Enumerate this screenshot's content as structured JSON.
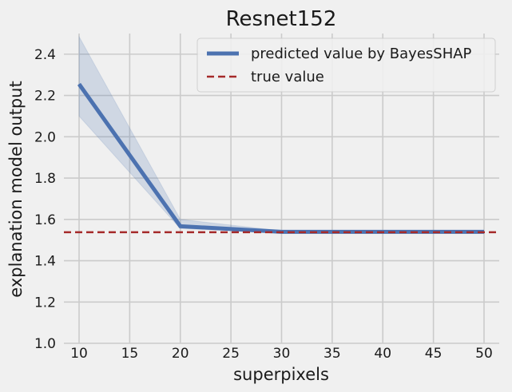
{
  "chart_data": {
    "type": "line",
    "title": "Resnet152",
    "xlabel": "superpixels",
    "ylabel": "explanation model output",
    "xlim": [
      8.5,
      51.5
    ],
    "ylim": [
      1.0,
      2.5
    ],
    "xticks": [
      10,
      15,
      20,
      25,
      30,
      35,
      40,
      45,
      50
    ],
    "yticks": [
      1.0,
      1.2,
      1.4,
      1.6,
      1.8,
      2.0,
      2.2,
      2.4
    ],
    "ytick_labels": [
      "1.0",
      "1.2",
      "1.4",
      "1.6",
      "1.8",
      "2.0",
      "2.2",
      "2.4"
    ],
    "grid": true,
    "legend_position": "top-right",
    "series": [
      {
        "name": "predicted value by BayesSHAP",
        "style": "solid",
        "color": "#4c72b0",
        "x": [
          10,
          20,
          30,
          40,
          50
        ],
        "y": [
          2.255,
          1.567,
          1.54,
          1.54,
          1.54
        ],
        "lower": [
          2.1,
          1.555,
          1.537,
          1.537,
          1.537
        ],
        "upper": [
          2.485,
          1.6,
          1.545,
          1.543,
          1.543
        ],
        "band_color": "#4c72b0"
      },
      {
        "name": "true value",
        "style": "dashed",
        "color": "#a52a2a",
        "hline": 1.538
      }
    ]
  }
}
